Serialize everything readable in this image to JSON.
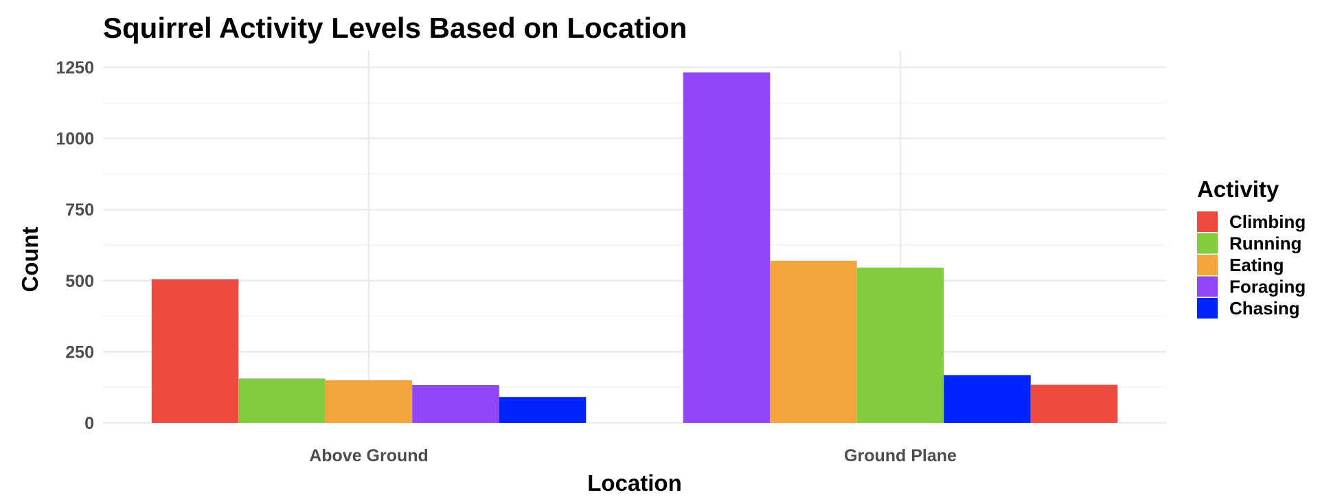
{
  "chart_data": {
    "type": "bar",
    "title": "Squirrel Activity Levels Based on Location",
    "xlabel": "Location",
    "ylabel": "Count",
    "ylim": [
      0,
      1310
    ],
    "yticks": [
      0,
      250,
      500,
      750,
      1000,
      1250
    ],
    "y_tick_labels": [
      "0",
      "250",
      "500",
      "750",
      "1000",
      "1250"
    ],
    "grid": true,
    "categories": [
      "Above Ground",
      "Ground Plane"
    ],
    "bars_in_order": [
      [
        {
          "activity": "Climbing",
          "value": 505
        },
        {
          "activity": "Running",
          "value": 156
        },
        {
          "activity": "Eating",
          "value": 150
        },
        {
          "activity": "Foraging",
          "value": 133
        },
        {
          "activity": "Chasing",
          "value": 91
        }
      ],
      [
        {
          "activity": "Foraging",
          "value": 1232
        },
        {
          "activity": "Eating",
          "value": 570
        },
        {
          "activity": "Running",
          "value": 546
        },
        {
          "activity": "Chasing",
          "value": 168
        },
        {
          "activity": "Climbing",
          "value": 134
        }
      ]
    ],
    "legend": {
      "title": "Activity",
      "position": "right",
      "entries": [
        {
          "label": "Climbing",
          "color": "#ee4a3f"
        },
        {
          "label": "Running",
          "color": "#82cc3e"
        },
        {
          "label": "Eating",
          "color": "#f3a53c"
        },
        {
          "label": "Foraging",
          "color": "#9146f7"
        },
        {
          "label": "Chasing",
          "color": "#0024fc"
        }
      ]
    }
  }
}
